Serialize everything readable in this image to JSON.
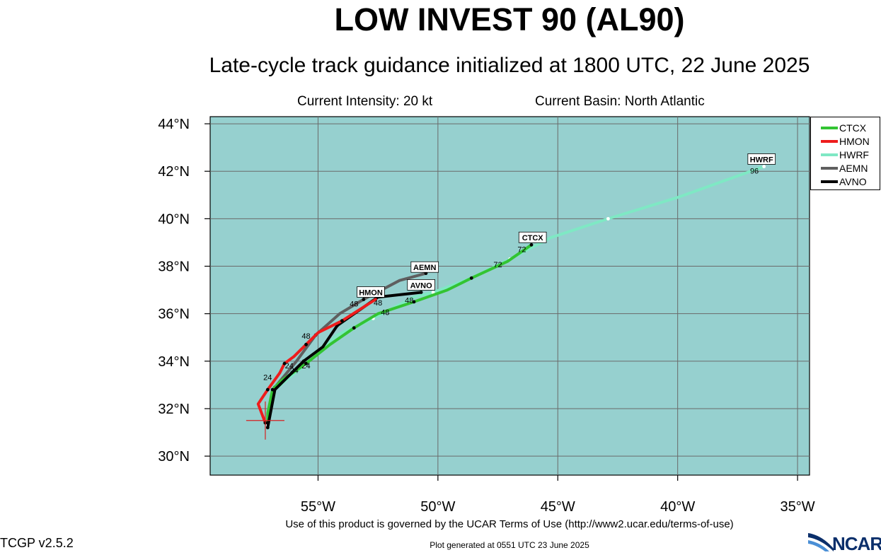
{
  "header": {
    "title": "LOW INVEST 90 (AL90)",
    "subtitle": "Late-cycle track guidance initialized at 1800 UTC, 22 June 2025",
    "intensity": "Current Intensity: 20 kt",
    "basin": "Current Basin: North Atlantic"
  },
  "colors": {
    "ocean": "#96d0cf",
    "grid": "#6a6a6a",
    "CTCX": "#33c433",
    "HMON": "#ee1c1c",
    "HWRF": "#7fe8c4",
    "AEMN": "#5f5f5f",
    "AVNO": "#000000",
    "marker": "#d62020"
  },
  "chart_data": {
    "type": "map",
    "xlim": [
      -59.5,
      -34.5
    ],
    "ylim": [
      29.2,
      44.3
    ],
    "lon_ticks": [
      -55,
      -50,
      -45,
      -40,
      -35
    ],
    "lat_ticks": [
      30,
      32,
      34,
      36,
      38,
      40,
      42,
      44
    ],
    "lon_tick_labels": [
      "55°W",
      "50°W",
      "45°W",
      "40°W",
      "35°W"
    ],
    "lat_tick_labels": [
      "30°N",
      "32°N",
      "34°N",
      "36°N",
      "38°N",
      "40°N",
      "42°N",
      "44°N"
    ],
    "current_position": {
      "lon": -57.2,
      "lat": 31.5
    },
    "legend": [
      "CTCX",
      "HMON",
      "HWRF",
      "AEMN",
      "AVNO"
    ],
    "series": [
      {
        "name": "CTCX",
        "points": [
          [
            -57.1,
            31.4
          ],
          [
            -57.1,
            31.8
          ],
          [
            -56.9,
            32.8
          ],
          [
            -56.5,
            33.2
          ],
          [
            -55.5,
            33.9
          ],
          [
            -54.5,
            34.7
          ],
          [
            -53.5,
            35.4
          ],
          [
            -52.5,
            36.0
          ],
          [
            -51.0,
            36.5
          ],
          [
            -49.6,
            37.0
          ],
          [
            -48.6,
            37.5
          ],
          [
            -47.1,
            38.2
          ],
          [
            -46.1,
            38.9
          ]
        ]
      },
      {
        "name": "HMON",
        "points": [
          [
            -57.2,
            31.4
          ],
          [
            -57.5,
            32.2
          ],
          [
            -57.1,
            32.8
          ],
          [
            -56.6,
            33.5
          ],
          [
            -56.4,
            33.9
          ],
          [
            -56.0,
            34.2
          ],
          [
            -55.5,
            34.7
          ],
          [
            -55.0,
            35.2
          ],
          [
            -54.0,
            35.7
          ],
          [
            -52.6,
            36.6
          ]
        ]
      },
      {
        "name": "HWRF",
        "points": [
          [
            -57.1,
            31.3
          ],
          [
            -56.8,
            32.8
          ],
          [
            -55.6,
            33.8
          ],
          [
            -54.2,
            35.1
          ],
          [
            -52.7,
            35.8
          ],
          [
            -51.0,
            36.7
          ],
          [
            -50.2,
            36.9
          ],
          [
            -48.6,
            37.5
          ],
          [
            -47.0,
            38.3
          ],
          [
            -45.3,
            39.2
          ],
          [
            -42.9,
            40.0
          ],
          [
            -40.0,
            40.9
          ],
          [
            -36.4,
            42.2
          ]
        ]
      },
      {
        "name": "AEMN",
        "points": [
          [
            -56.8,
            32.9
          ],
          [
            -55.9,
            34.0
          ],
          [
            -55.1,
            35.1
          ],
          [
            -54.1,
            36.0
          ],
          [
            -53.1,
            36.6
          ],
          [
            -51.6,
            37.4
          ],
          [
            -50.5,
            37.7
          ]
        ]
      },
      {
        "name": "AVNO",
        "points": [
          [
            -57.1,
            31.2
          ],
          [
            -56.8,
            32.8
          ],
          [
            -55.6,
            34.0
          ],
          [
            -54.8,
            34.6
          ],
          [
            -54.2,
            35.5
          ],
          [
            -52.5,
            36.7
          ],
          [
            -50.7,
            36.9
          ]
        ]
      }
    ],
    "tau_labels": [
      {
        "text": "24",
        "lon": -57.1,
        "lat": 33.2
      },
      {
        "text": "24",
        "lon": -56.2,
        "lat": 33.7
      },
      {
        "text": "24",
        "lon": -56.0,
        "lat": 33.5
      },
      {
        "text": "24",
        "lon": -55.5,
        "lat": 33.7
      },
      {
        "text": "48",
        "lon": -55.5,
        "lat": 34.95
      },
      {
        "text": "48",
        "lon": -53.5,
        "lat": 36.3
      },
      {
        "text": "48",
        "lon": -52.5,
        "lat": 36.35
      },
      {
        "text": "48",
        "lon": -52.2,
        "lat": 35.95
      },
      {
        "text": "48",
        "lon": -51.2,
        "lat": 36.45
      },
      {
        "text": "72",
        "lon": -47.5,
        "lat": 37.95
      },
      {
        "text": "72",
        "lon": -46.5,
        "lat": 38.6
      },
      {
        "text": "96",
        "lon": -36.8,
        "lat": 41.9
      }
    ],
    "end_labels": [
      {
        "text": "HWRF",
        "lon": -36.5,
        "lat": 42.5
      },
      {
        "text": "CTCX",
        "lon": -46.05,
        "lat": 39.2
      },
      {
        "text": "AEMN",
        "lon": -50.55,
        "lat": 37.95
      },
      {
        "text": "AVNO",
        "lon": -50.7,
        "lat": 37.2
      },
      {
        "text": "HMON",
        "lon": -52.8,
        "lat": 36.9
      }
    ]
  },
  "footer": {
    "terms": "Use of this product is governed by the UCAR Terms of Use (http://www2.ucar.edu/terms-of-use)",
    "version": "TCGP v2.5.2",
    "generated": "Plot generated at 0551 UTC   23 June 2025",
    "logo": "NCAR"
  }
}
